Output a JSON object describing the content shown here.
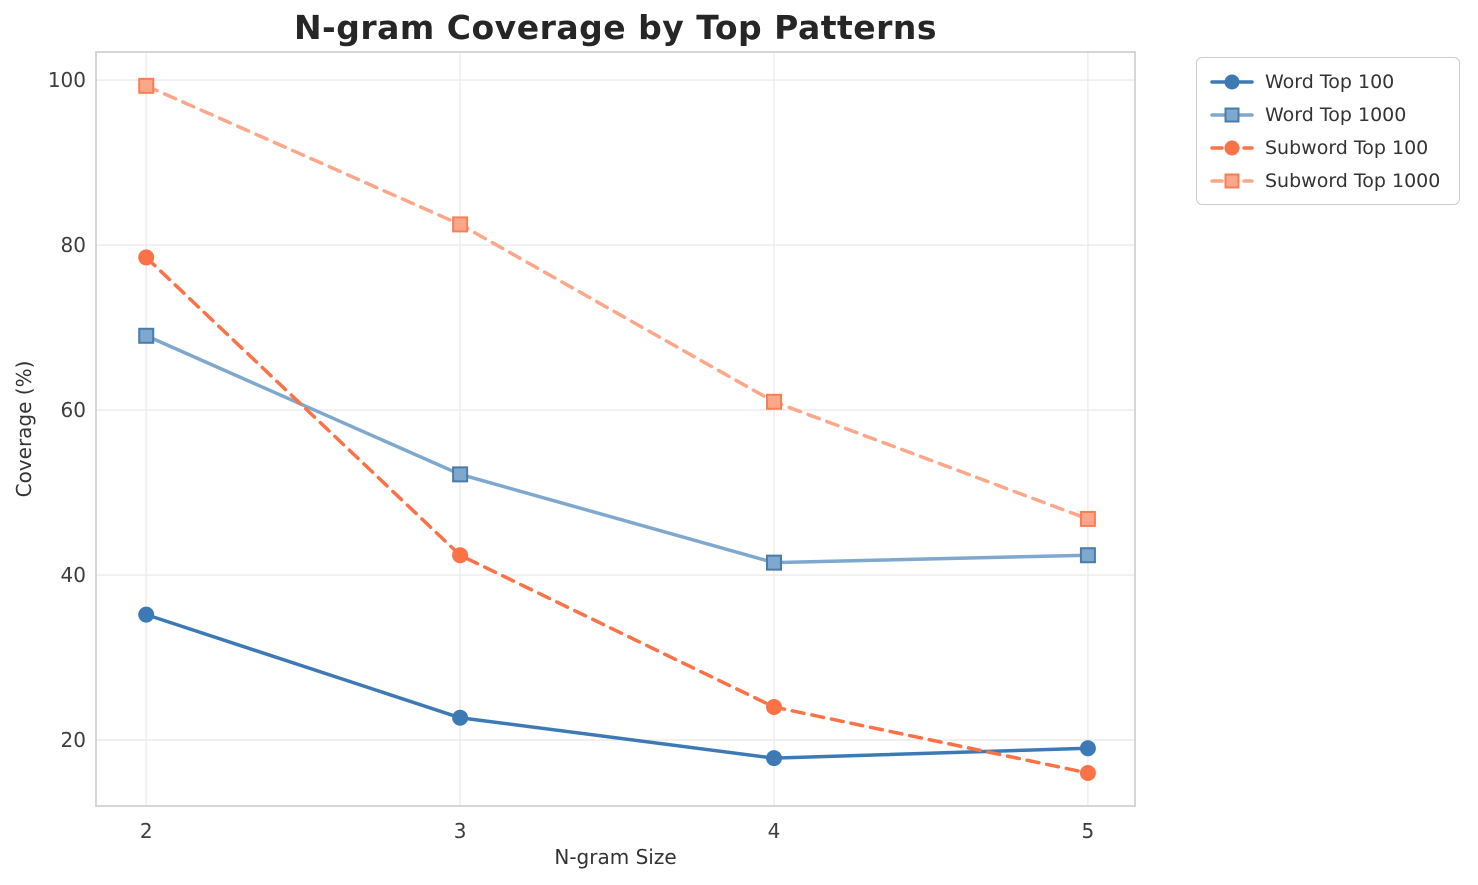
{
  "chart_data": {
    "type": "line",
    "title": "N-gram Coverage by Top Patterns",
    "xlabel": "N-gram Size",
    "ylabel": "Coverage (%)",
    "x": [
      2,
      3,
      4,
      5
    ],
    "series": [
      {
        "name": "Word Top 100",
        "values": [
          35.2,
          22.7,
          17.8,
          19.0
        ],
        "color": "#3d7ab5",
        "marker": "circle",
        "marker_edge": "#3d7ab5",
        "line": "solid"
      },
      {
        "name": "Word Top 1000",
        "values": [
          69.0,
          52.2,
          41.5,
          42.4
        ],
        "color": "#7fa8cf",
        "marker": "square",
        "marker_edge": "#4a7ca8",
        "line": "solid"
      },
      {
        "name": "Subword Top 100",
        "values": [
          78.5,
          42.4,
          24.0,
          16.0
        ],
        "color": "#fb7246",
        "marker": "circle",
        "marker_edge": "#fb7246",
        "line": "dashed"
      },
      {
        "name": "Subword Top 1000",
        "values": [
          99.3,
          82.5,
          61.0,
          46.8
        ],
        "color": "#fca78a",
        "marker": "square",
        "marker_edge": "#fb7d55",
        "line": "dashed"
      }
    ],
    "xticks": [
      2,
      3,
      4,
      5
    ],
    "yticks": [
      20,
      40,
      60,
      80,
      100
    ],
    "xlim": [
      1.84,
      5.15
    ],
    "ylim": [
      12,
      103.4
    ],
    "grid": true,
    "legend_position": "outside upper right",
    "style": {
      "grid_color": "#ececec",
      "spine_color": "#cccccc",
      "tick_label_color": "#3d3d3d",
      "background": "#ffffff"
    }
  }
}
